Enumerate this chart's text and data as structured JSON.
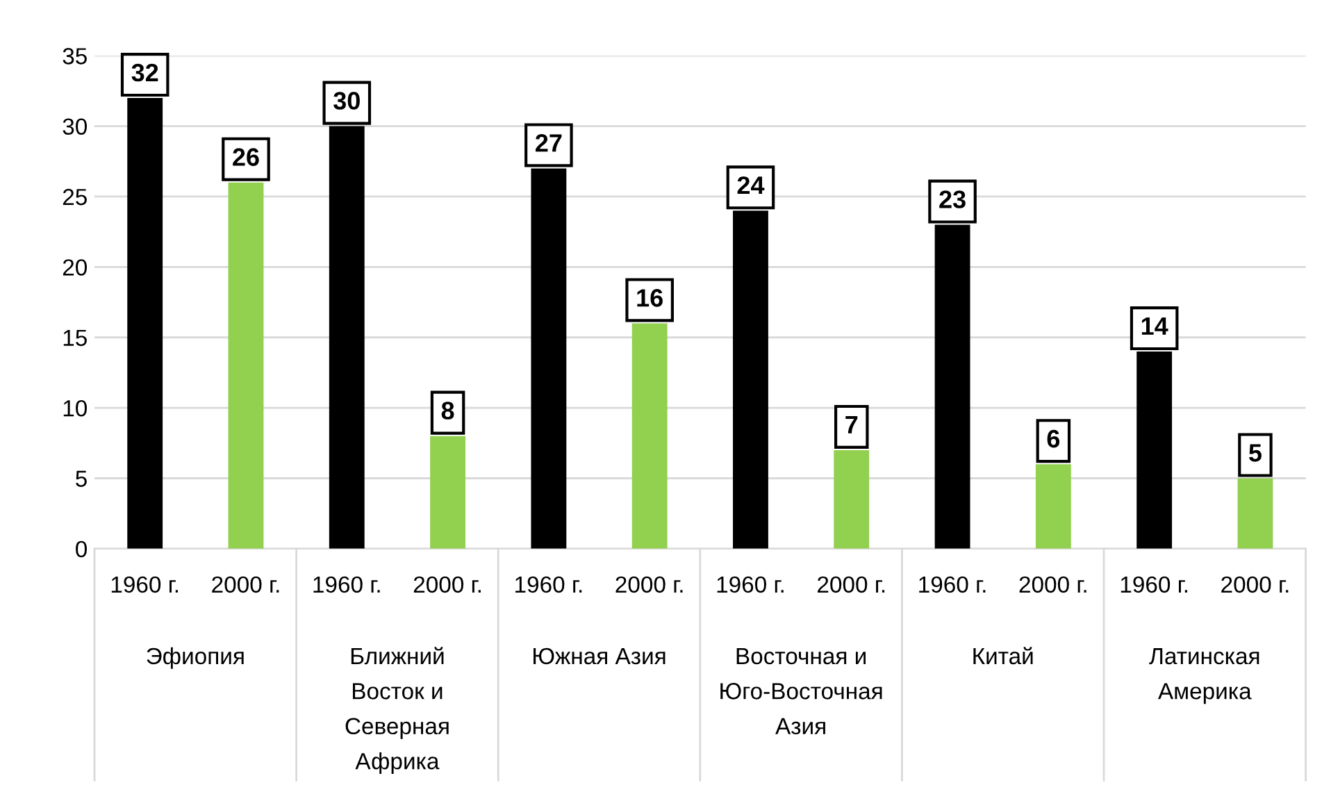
{
  "chart_data": {
    "type": "bar",
    "categories": [
      "1960 г.",
      "2000 г.",
      "1960 г.",
      "2000 г.",
      "1960 г.",
      "2000 г.",
      "1960 г.",
      "2000 г.",
      "1960 г.",
      "2000 г.",
      "1960 г.",
      "2000 г."
    ],
    "values": [
      32,
      26,
      30,
      8,
      27,
      16,
      24,
      7,
      23,
      6,
      14,
      5
    ],
    "colors": [
      "#000000",
      "#92d050",
      "#000000",
      "#92d050",
      "#000000",
      "#92d050",
      "#000000",
      "#92d050",
      "#000000",
      "#92d050",
      "#000000",
      "#92d050"
    ],
    "annotations": [
      "Эфиопия",
      "Ближний\nВосток и\nСеверная\nАфрика",
      "Южная Азия",
      "Восточная и\nЮго-Восточная\nАзия",
      "Китай",
      "Латинская\nАмерика"
    ],
    "ylim": [
      0,
      35
    ],
    "yticks": [
      0,
      5,
      10,
      15,
      20,
      25,
      30,
      35
    ],
    "grid": "y",
    "data_labels": true,
    "legend": false
  }
}
